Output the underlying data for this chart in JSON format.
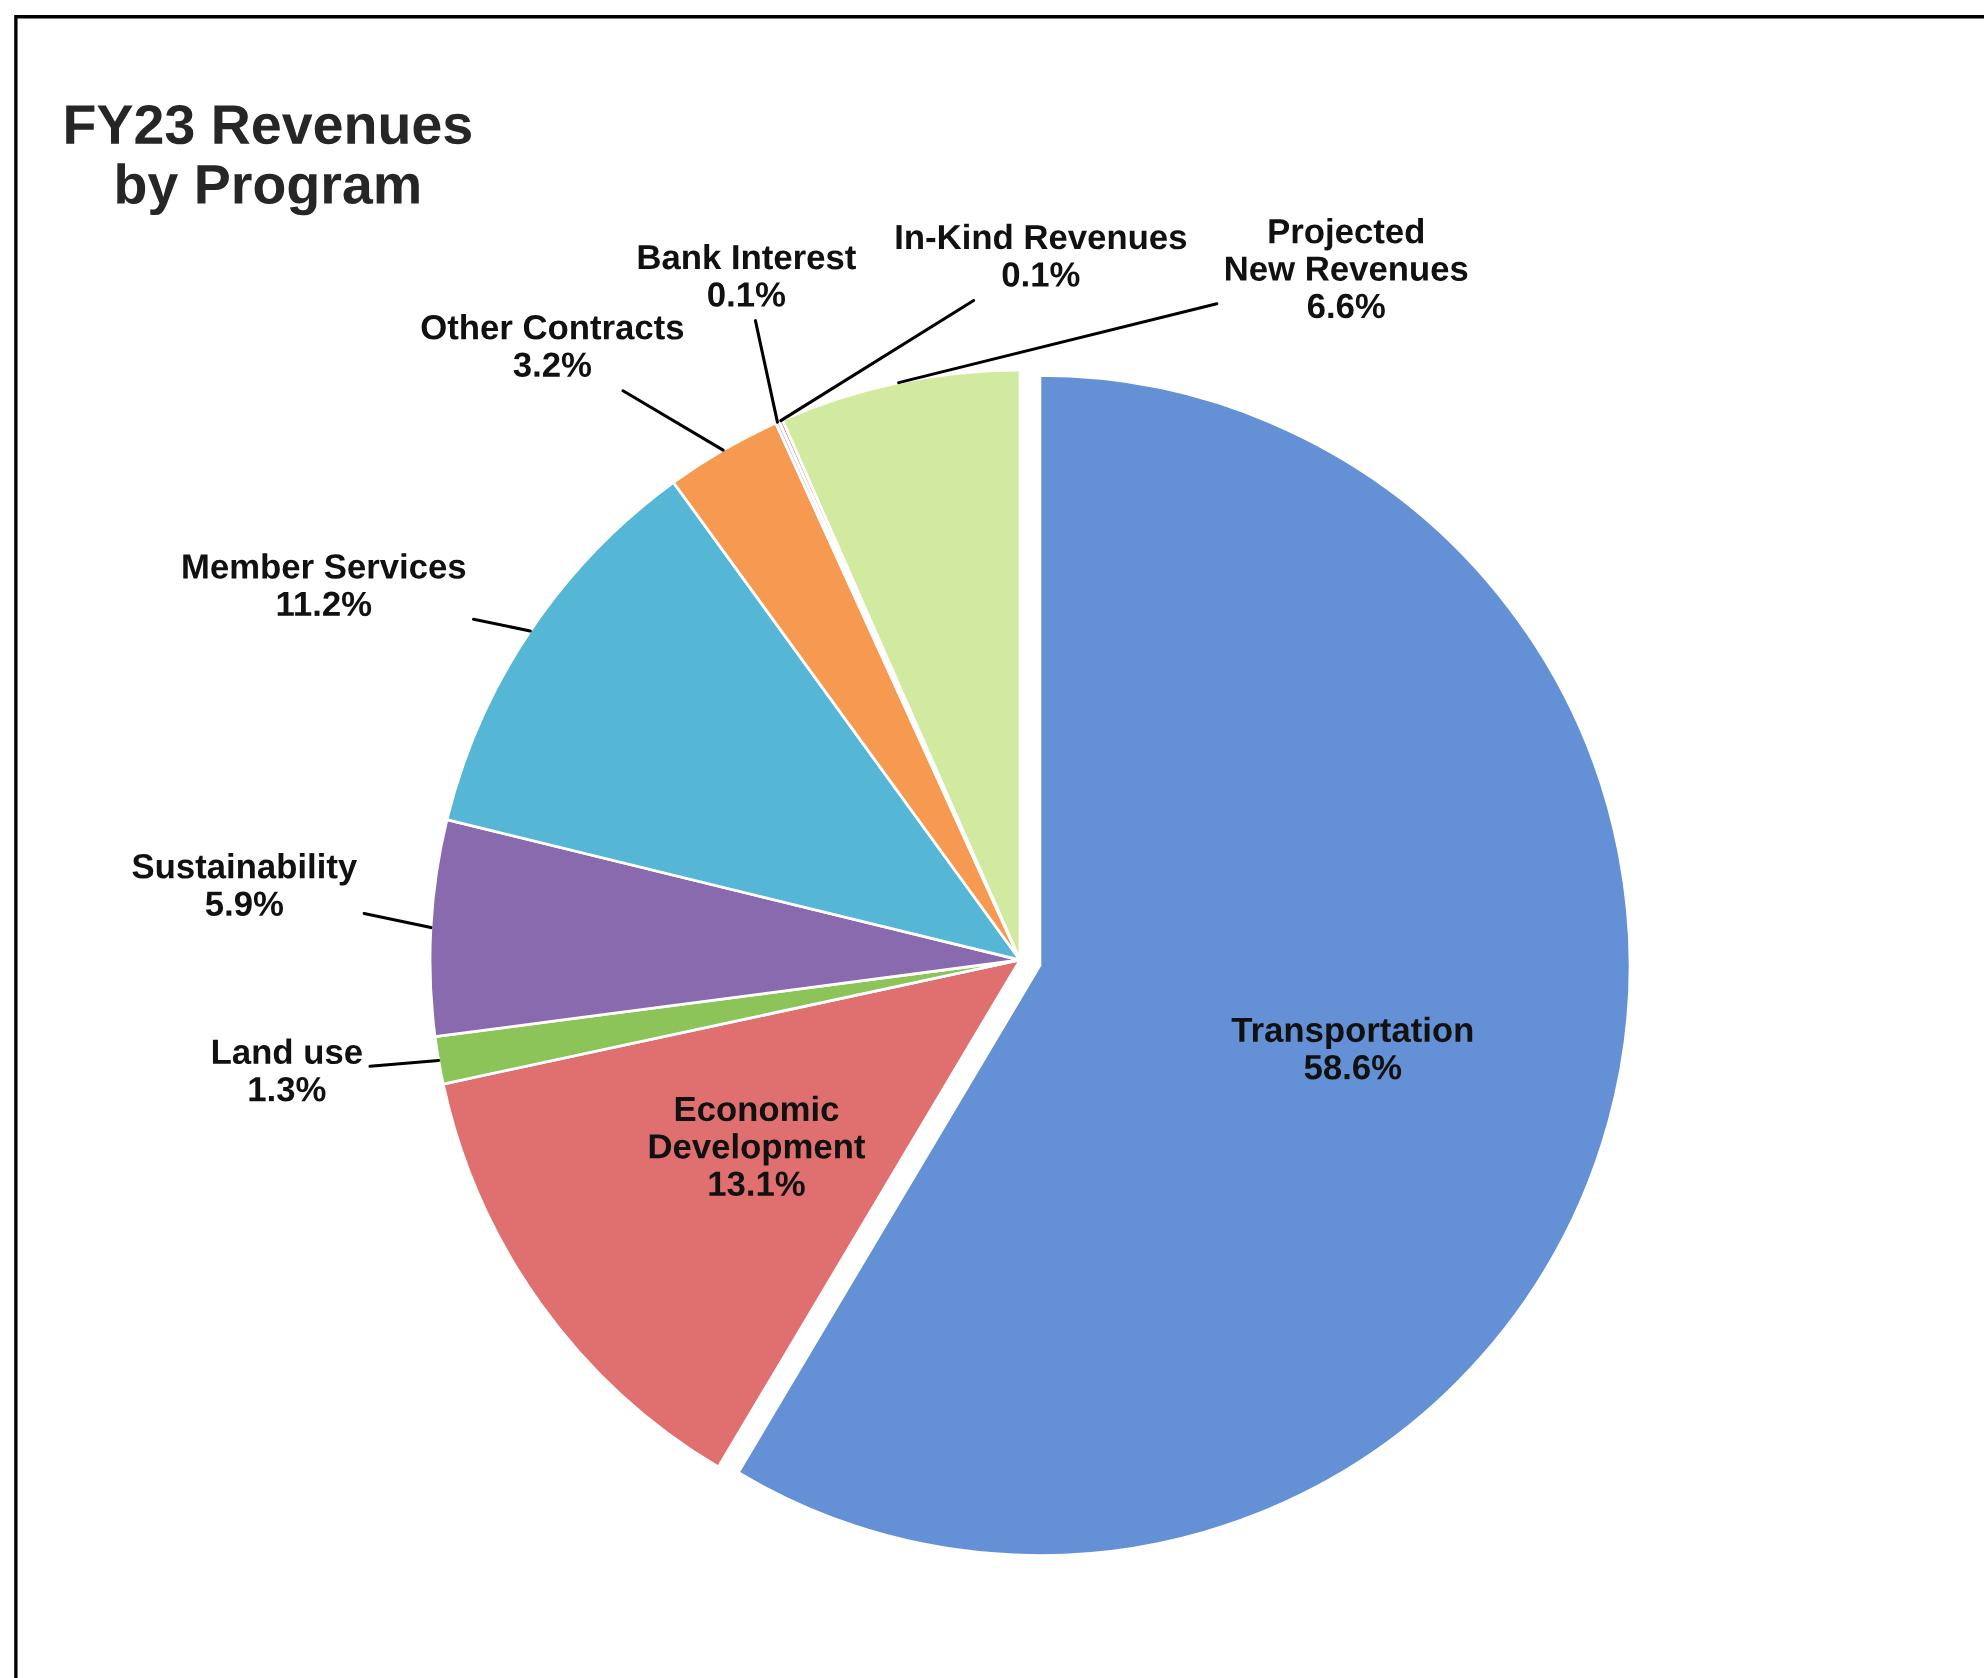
{
  "chart_data": {
    "type": "pie",
    "title": "FY23 Revenues by Program",
    "categories": [
      "Transportation",
      "Economic Development",
      "Land use",
      "Sustainability",
      "Member Services",
      "Other Contracts",
      "Bank Interest",
      "In-Kind Revenues",
      "Projected New Revenues"
    ],
    "values": [
      58.6,
      13.1,
      1.3,
      5.9,
      11.2,
      3.2,
      0.1,
      0.1,
      6.6
    ],
    "colors": [
      "#6490d6",
      "#e07070",
      "#8cc45a",
      "#8a6aae",
      "#56b6d6",
      "#f59a50",
      "#b8b4d4",
      "#d08080",
      "#d2eaa0"
    ],
    "value_labels": [
      "58.6%",
      "13.1%",
      "1.3%",
      "5.9%",
      "11.2%",
      "3.2%",
      "0.1%",
      "0.1%",
      "6.6%"
    ]
  }
}
